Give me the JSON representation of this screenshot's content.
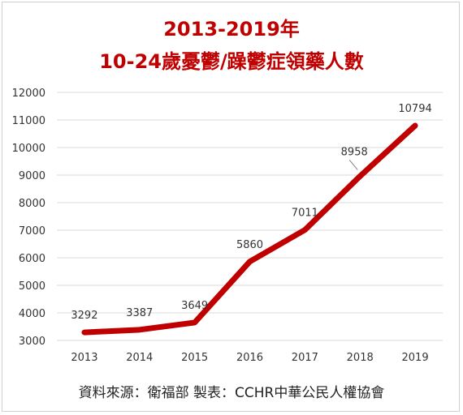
{
  "chart_data": {
    "type": "line",
    "title": "2013-2019年",
    "subtitle": "10-24歲憂鬱/躁鬱症領藥人數",
    "x": [
      "2013",
      "2014",
      "2015",
      "2016",
      "2017",
      "2018",
      "2019"
    ],
    "series": [
      {
        "values": [
          3292,
          3387,
          3649,
          5860,
          7011,
          8958,
          10794
        ],
        "color": "#c00000"
      }
    ],
    "data_labels": [
      "3292",
      "3387",
      "3649",
      "5860",
      "7011",
      "8958",
      "10794"
    ],
    "yticks": [
      3000,
      4000,
      5000,
      6000,
      7000,
      8000,
      9000,
      10000,
      11000,
      12000
    ],
    "ylim": [
      3000,
      12000
    ],
    "grid": true,
    "legend": "none",
    "xlabel": "",
    "ylabel": ""
  },
  "source_note": "資料來源：衛福部   製表：CCHR中華公民人權協會"
}
